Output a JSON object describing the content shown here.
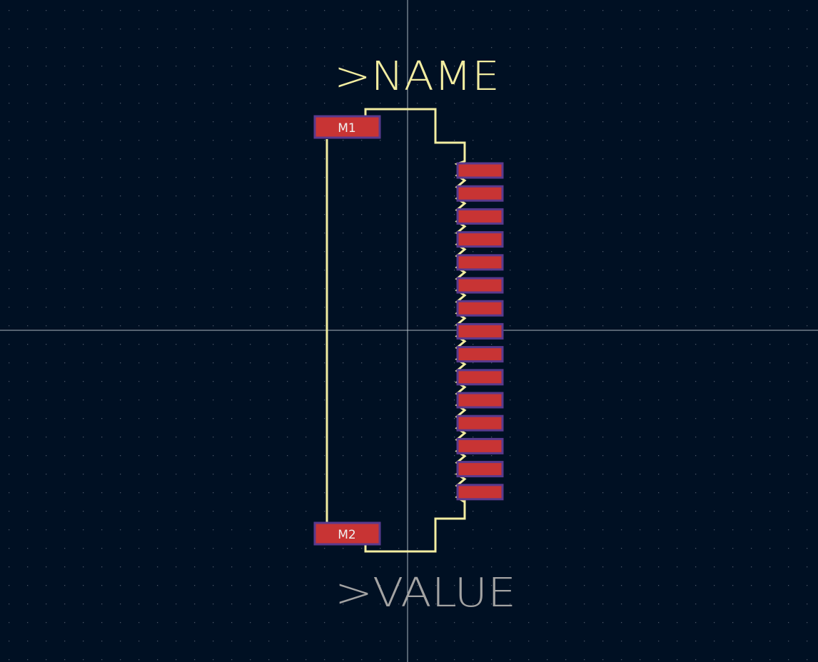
{
  "colors": {
    "background": "#001023",
    "grid_dot": "#4a5566",
    "crosshair": "#c8d0d8",
    "silkscreen": "#f2eda1",
    "pad_fill": "#c83434",
    "pad_outline": "#5a3a8e",
    "pad_label": "#f0f0f0",
    "value_text": "#a3a3a3"
  },
  "footprint": {
    "reference_text": ">NAME",
    "value_text": ">VALUE",
    "mounting_pads": [
      {
        "label": "M1"
      },
      {
        "label": "M2"
      }
    ],
    "signal_pin_count": 15
  }
}
